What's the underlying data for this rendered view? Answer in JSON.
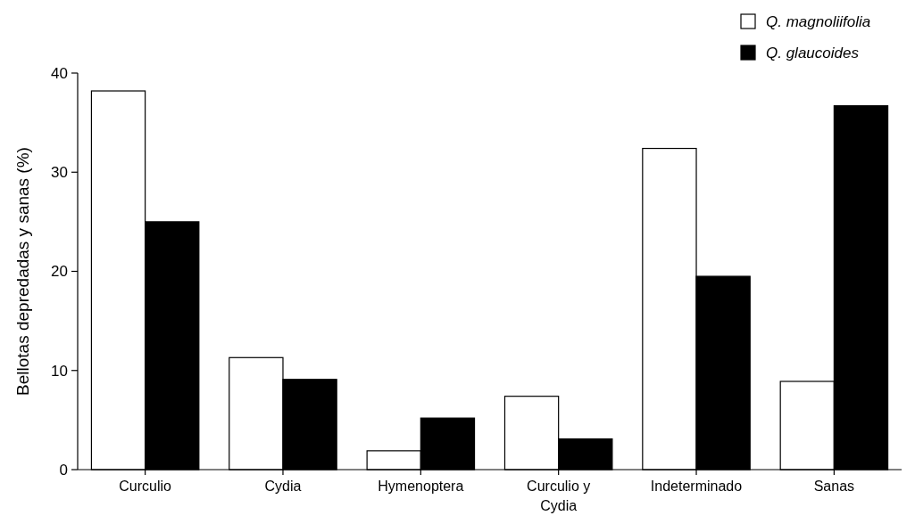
{
  "chart_data": {
    "type": "bar",
    "ylabel": "Bellotas depredadas y sanas (%)",
    "categories": [
      "Curculio",
      "Cydia",
      "Hymenoptera",
      "Curculio y Cydia",
      "Indeterminado",
      "Sanas"
    ],
    "series": [
      {
        "name": "Q. magnoliifolia",
        "color": "#ffffff",
        "values": [
          38.2,
          11.3,
          1.9,
          7.4,
          32.4,
          8.9
        ]
      },
      {
        "name": "Q. glaucoides",
        "color": "#000000",
        "values": [
          25.0,
          9.1,
          5.2,
          3.1,
          19.5,
          36.7
        ]
      }
    ],
    "ylim": [
      0,
      40
    ],
    "yticks": [
      0,
      10,
      20,
      30,
      40
    ],
    "grid": false,
    "legend": "top right"
  }
}
